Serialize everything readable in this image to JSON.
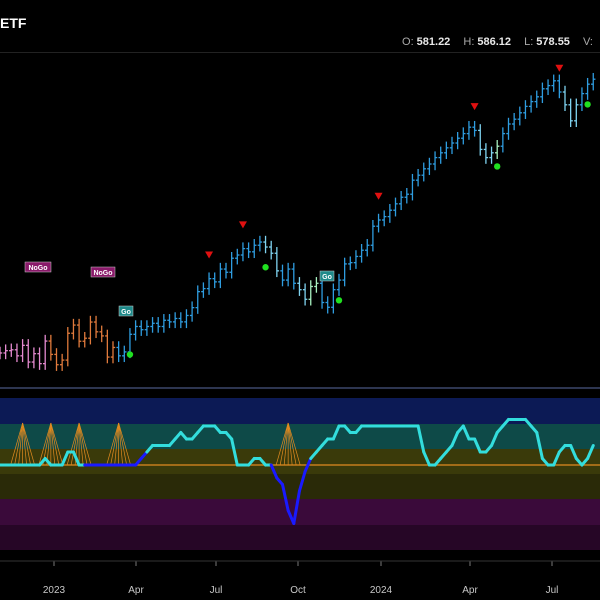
{
  "header": {
    "title": "ETF",
    "ohlc": [
      {
        "key": "O:",
        "value": "581.22"
      },
      {
        "key": "H:",
        "value": "586.12"
      },
      {
        "key": "L:",
        "value": "578.55"
      },
      {
        "key": "V:",
        "value": ""
      }
    ]
  },
  "colors": {
    "bar_blue": "#2f9de0",
    "bar_paleblue": "#7fd3f0",
    "bar_palegreen": "#a8f0c0",
    "bar_orange": "#e07a3c",
    "bar_pink": "#e58ad0",
    "down_triangle": "#e01010",
    "go_dot": "#20e020",
    "oscillator_cyan": "#33dddd",
    "oscillator_blue": "#1a1aff",
    "zero_line": "#e08a20",
    "tag_nogo": "#8a1a6a",
    "tag_go": "#1f8a8a"
  },
  "tags": [
    {
      "text": "NoGo",
      "kind": "nogo"
    },
    {
      "text": "NoGo",
      "kind": "nogo"
    },
    {
      "text": "Go",
      "kind": "go"
    },
    {
      "text": "Go",
      "kind": "go"
    }
  ],
  "chart_data": {
    "type": "line",
    "x_ticks": [
      "2023",
      "Apr",
      "Jul",
      "Oct",
      "2024",
      "Apr",
      "Jul"
    ],
    "series": [
      {
        "values": [
          410.2,
          411.5,
          412.0,
          408.6,
          414.5,
          405.1,
          409.8,
          404.2,
          416.9,
          409.4,
          403.6,
          406.2,
          421.3,
          425.9,
          416.8,
          418.5,
          427.6,
          422.1,
          419.8,
          407.9,
          413.3,
          408.6,
          410.8,
          420.7,
          425.1,
          423.3,
          425.1,
          426.9,
          425.1,
          428.6,
          427.7,
          429.6,
          427.7,
          431.3,
          435.7,
          444.7,
          446.4,
          452.0,
          450.2,
          457.4,
          455.6,
          463.5,
          465.3,
          468.9,
          467.1,
          470.8,
          472.6,
          469.8,
          466.3,
          456.4,
          451.2,
          457.4,
          449.4,
          445.8,
          440.4,
          447.6,
          449.4,
          438.6,
          435.9,
          445.8,
          451.2,
          460.3,
          461.0,
          464.5,
          468.0,
          470.8,
          481.5,
          485.0,
          486.9,
          490.5,
          494.1,
          497.8,
          499.5,
          507.4,
          510.2,
          513.8,
          516.5,
          520.1,
          522.8,
          525.6,
          528.3,
          531.0,
          533.6,
          537.2,
          535.4,
          524.7,
          520.1,
          522.8,
          526.5,
          533.6,
          539.0,
          541.7,
          545.3,
          548.9,
          551.6,
          554.3,
          558.8,
          560.6,
          563.3,
          557.0,
          549.8,
          540.8,
          549.8,
          556.1,
          561.4,
          564.2
        ]
      }
    ],
    "oscillator_values": [
      0,
      0,
      0,
      0,
      0,
      0,
      0,
      0,
      1,
      0,
      0,
      0,
      2,
      2,
      0,
      0,
      0,
      0,
      0,
      0,
      0,
      0,
      0,
      0,
      0,
      1,
      2,
      3,
      3,
      3,
      3,
      4,
      5,
      4,
      4,
      5,
      6,
      6,
      6,
      5,
      5,
      4,
      0,
      0,
      0,
      1,
      1,
      0,
      0,
      -2,
      -3,
      -7,
      -9,
      -4,
      -1,
      1,
      2,
      3,
      4,
      4,
      6,
      6,
      5,
      5,
      6,
      6,
      6,
      6,
      6,
      6,
      6,
      6,
      6,
      6,
      6,
      2,
      0,
      0,
      1,
      2,
      3,
      5,
      6,
      4,
      4,
      2,
      2,
      3,
      5,
      6,
      7,
      7,
      7,
      7,
      6,
      5,
      1,
      0,
      0,
      2,
      3,
      3,
      1,
      0,
      1,
      3
    ],
    "ylim": [
      395,
      575
    ],
    "osc_ylim": [
      -10,
      10
    ]
  }
}
